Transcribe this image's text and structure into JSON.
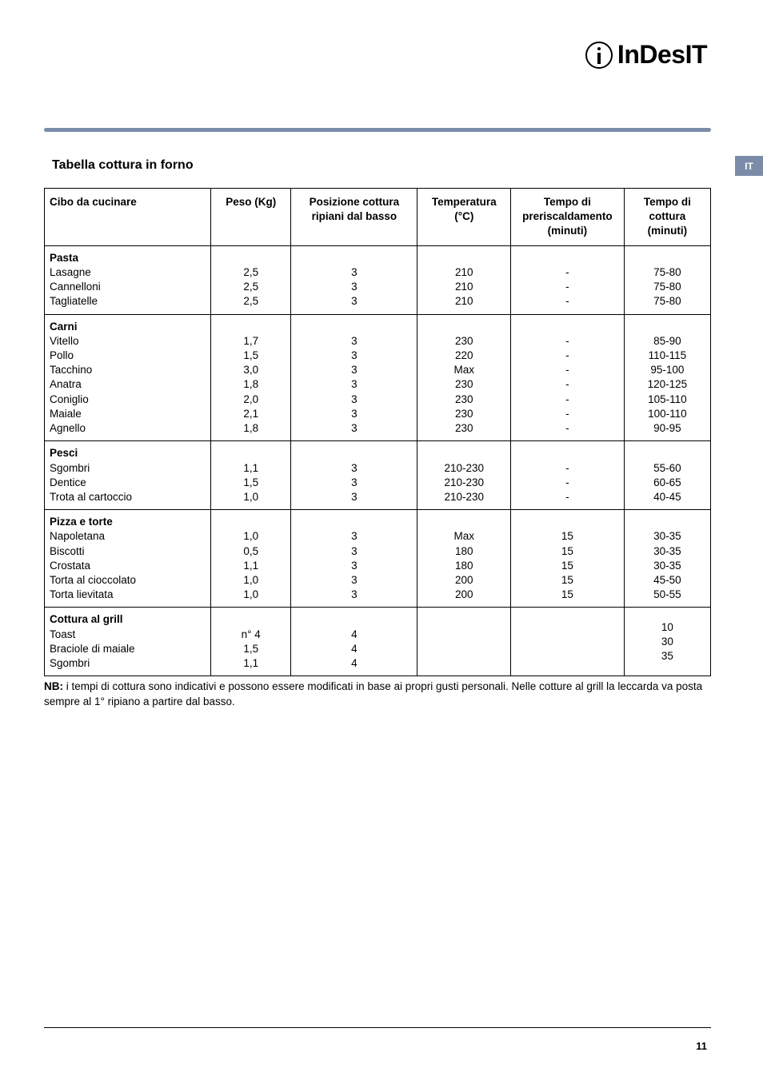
{
  "brand": {
    "name": "InDesIT"
  },
  "lang_tag": "IT",
  "section_title": "Tabella cottura in forno",
  "table": {
    "headers": {
      "food": "Cibo da cucinare",
      "weight": "Peso (Kg)",
      "position": "Posizione cottura ripiani dal basso",
      "temperature": "Temperatura (°C)",
      "preheat": "Tempo di preriscaldamento (minuti)",
      "cook_time": "Tempo di cottura (minuti)"
    },
    "groups": [
      {
        "title": "Pasta",
        "rows": [
          {
            "food": "Lasagne",
            "weight": "2,5",
            "pos": "3",
            "temp": "210",
            "pre": "-",
            "time": "75-80"
          },
          {
            "food": "Cannelloni",
            "weight": "2,5",
            "pos": "3",
            "temp": "210",
            "pre": "-",
            "time": "75-80"
          },
          {
            "food": "Tagliatelle",
            "weight": "2,5",
            "pos": "3",
            "temp": "210",
            "pre": "-",
            "time": "75-80"
          }
        ]
      },
      {
        "title": "Carni",
        "rows": [
          {
            "food": "Vitello",
            "weight": "1,7",
            "pos": "3",
            "temp": "230",
            "pre": "-",
            "time": "85-90"
          },
          {
            "food": "Pollo",
            "weight": "1,5",
            "pos": "3",
            "temp": "220",
            "pre": "-",
            "time": "110-115"
          },
          {
            "food": "Tacchino",
            "weight": "3,0",
            "pos": "3",
            "temp": "Max",
            "pre": "-",
            "time": "95-100"
          },
          {
            "food": "Anatra",
            "weight": "1,8",
            "pos": "3",
            "temp": "230",
            "pre": "-",
            "time": "120-125"
          },
          {
            "food": "Coniglio",
            "weight": "2,0",
            "pos": "3",
            "temp": "230",
            "pre": "-",
            "time": "105-110"
          },
          {
            "food": "Maiale",
            "weight": "2,1",
            "pos": "3",
            "temp": "230",
            "pre": "-",
            "time": "100-110"
          },
          {
            "food": "Agnello",
            "weight": "1,8",
            "pos": "3",
            "temp": "230",
            "pre": "-",
            "time": "90-95"
          }
        ]
      },
      {
        "title": "Pesci",
        "rows": [
          {
            "food": "Sgombri",
            "weight": "1,1",
            "pos": "3",
            "temp": "210-230",
            "pre": "-",
            "time": "55-60"
          },
          {
            "food": "Dentice",
            "weight": "1,5",
            "pos": "3",
            "temp": "210-230",
            "pre": "-",
            "time": "60-65"
          },
          {
            "food": "Trota al cartoccio",
            "weight": "1,0",
            "pos": "3",
            "temp": "210-230",
            "pre": "-",
            "time": "40-45"
          }
        ]
      },
      {
        "title": "Pizza e torte",
        "rows": [
          {
            "food": "Napoletana",
            "weight": "1,0",
            "pos": "3",
            "temp": "Max",
            "pre": "15",
            "time": "30-35"
          },
          {
            "food": "Biscotti",
            "weight": "0,5",
            "pos": "3",
            "temp": "180",
            "pre": "15",
            "time": "30-35"
          },
          {
            "food": "Crostata",
            "weight": "1,1",
            "pos": "3",
            "temp": "180",
            "pre": "15",
            "time": "30-35"
          },
          {
            "food": "Torta al cioccolato",
            "weight": "1,0",
            "pos": "3",
            "temp": "200",
            "pre": "15",
            "time": "45-50"
          },
          {
            "food": "Torta lievitata",
            "weight": "1,0",
            "pos": "3",
            "temp": "200",
            "pre": "15",
            "time": "50-55"
          }
        ]
      },
      {
        "title": "Cottura al grill",
        "time_block": "10\n30\n35",
        "rows": [
          {
            "food": "Toast",
            "weight": "n° 4",
            "pos": "4",
            "temp": "",
            "pre": ""
          },
          {
            "food": "Braciole di maiale",
            "weight": "1,5",
            "pos": "4",
            "temp": "",
            "pre": ""
          },
          {
            "food": "Sgombri",
            "weight": "1,1",
            "pos": "4",
            "temp": "",
            "pre": ""
          }
        ]
      }
    ]
  },
  "note_prefix": "NB:",
  "note_text": " i tempi di cottura sono indicativi e possono essere modificati in base ai propri gusti personali.  Nelle cotture al grill la leccarda va posta sempre al 1° ripiano a partire dal basso.",
  "page_number": "11",
  "colors": {
    "accent": "#7a8ca8",
    "text": "#000000",
    "background": "#ffffff"
  }
}
